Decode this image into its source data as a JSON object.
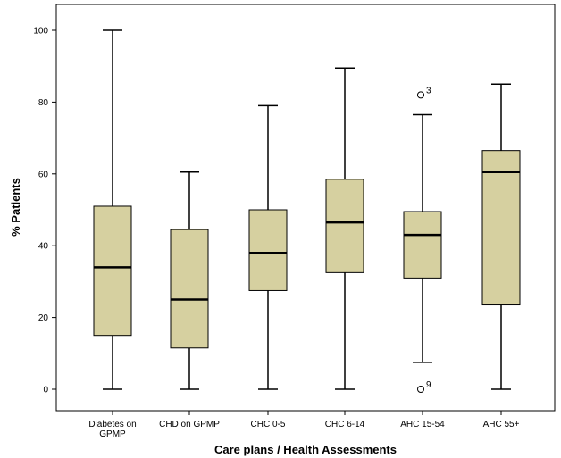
{
  "chart_data": {
    "type": "boxplot",
    "xlabel": "Care plans / Health Assessments",
    "ylabel": "% Patients",
    "ylim": [
      -6,
      106
    ],
    "yticks": [
      0,
      20,
      40,
      60,
      80,
      100
    ],
    "grid": false,
    "categories": [
      [
        "Diabetes on",
        "GPMP"
      ],
      [
        "CHD on GPMP"
      ],
      [
        "CHC 0-5"
      ],
      [
        "CHC 6-14"
      ],
      [
        "AHC 15-54"
      ],
      [
        "AHC 55+"
      ]
    ],
    "boxes": [
      {
        "min": 0,
        "q1": 15,
        "median": 34,
        "q3": 51,
        "max": 100,
        "outliers": []
      },
      {
        "min": 0,
        "q1": 11.5,
        "median": 25,
        "q3": 44.5,
        "max": 60.5,
        "outliers": []
      },
      {
        "min": 0,
        "q1": 27.5,
        "median": 38,
        "q3": 50,
        "max": 79,
        "outliers": []
      },
      {
        "min": 0,
        "q1": 32.5,
        "median": 46.5,
        "q3": 58.5,
        "max": 89.5,
        "outliers": []
      },
      {
        "min": 7.5,
        "q1": 31,
        "median": 43,
        "q3": 49.5,
        "max": 76.5,
        "outliers": [
          {
            "value": 82,
            "label": "3"
          },
          {
            "value": 0,
            "label": "9"
          }
        ]
      },
      {
        "min": 0,
        "q1": 23.5,
        "median": 60.5,
        "q3": 66.5,
        "max": 85,
        "outliers": []
      }
    ],
    "colors": {
      "box_fill": "#d6d0a0",
      "stroke": "#000000"
    }
  }
}
